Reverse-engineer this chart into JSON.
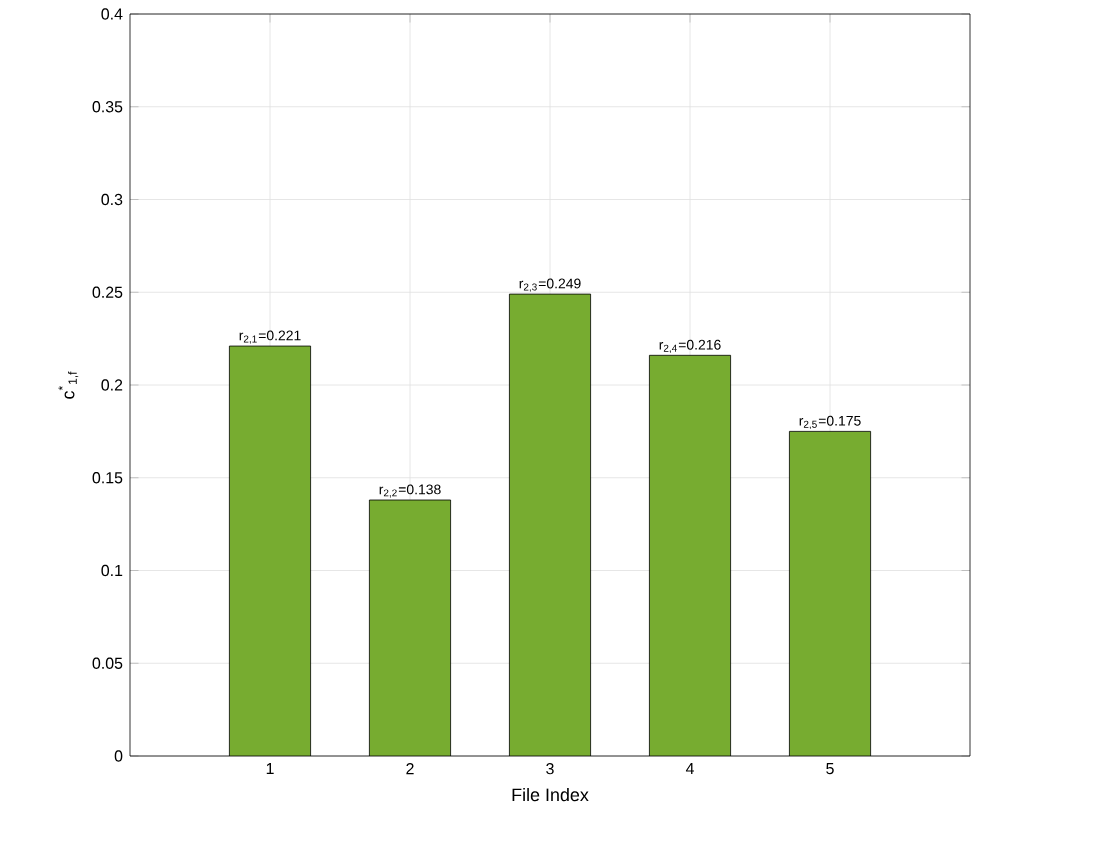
{
  "chart_data": {
    "type": "bar",
    "xlabel": "File Index",
    "ylabel": "c$^{*}$$_{1,f}$",
    "categories": [
      "1",
      "2",
      "3",
      "4",
      "5"
    ],
    "values": [
      0.221,
      0.138,
      0.249,
      0.216,
      0.175
    ],
    "value_labels": [
      "r$_{2,1}$=0.221",
      "r$_{2,2}$=0.138",
      "r$_{2,3}$=0.249",
      "r$_{2,4}$=0.216",
      "r$_{2,5}$=0.175"
    ],
    "color": "#77ac30",
    "ylim": [
      0,
      0.4
    ],
    "yticks": [
      0,
      0.05,
      0.1,
      0.15,
      0.2,
      0.25,
      0.3,
      0.35,
      0.4
    ],
    "grid": true
  }
}
